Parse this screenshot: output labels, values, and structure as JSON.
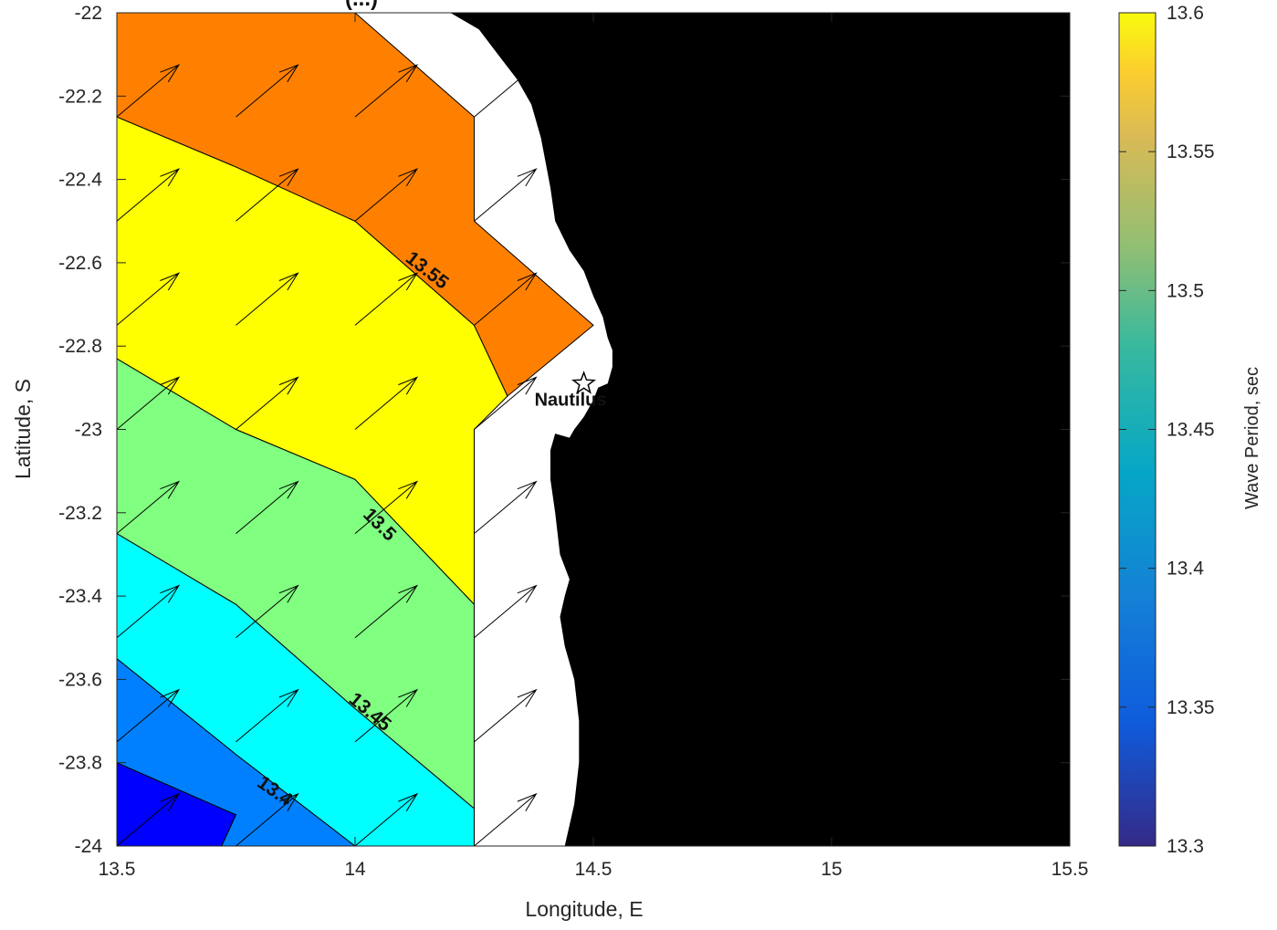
{
  "title": "(...)",
  "colorbar": {
    "label": "Wave Period, sec",
    "min": 13.3,
    "max": 13.6,
    "ticks": [
      "13.3",
      "13.35",
      "13.4",
      "13.45",
      "13.5",
      "13.55",
      "13.6"
    ]
  },
  "place": {
    "name": "Nautilus",
    "lon": 14.48,
    "lat": -22.89,
    "marker": "star-icon"
  },
  "chart_data": {
    "type": "heatmap",
    "subtype": "filled-contour-map",
    "xlabel": "Longitude, E",
    "ylabel": "Latitude, S",
    "xlim": [
      13.5,
      15.5
    ],
    "ylim": [
      -24,
      -22
    ],
    "x_ticks": [
      "13.5",
      "14",
      "14.5",
      "15",
      "15.5"
    ],
    "y_ticks": [
      "-22",
      "-22.2",
      "-22.4",
      "-22.6",
      "-22.8",
      "-23",
      "-23.2",
      "-23.4",
      "-23.6",
      "-23.8",
      "-24"
    ],
    "grid": false,
    "land_color": "#000000",
    "bands": [
      {
        "range": [
          13.3,
          13.35
        ],
        "color": "#0000ff",
        "polygon": [
          [
            13.5,
            -23.8
          ],
          [
            13.75,
            -23.925
          ],
          [
            13.72,
            -24
          ],
          [
            13.5,
            -24
          ]
        ]
      },
      {
        "range": [
          13.35,
          13.4
        ],
        "color": "#0080ff",
        "polygon": [
          [
            13.5,
            -23.55
          ],
          [
            13.75,
            -23.78
          ],
          [
            14.0,
            -24
          ],
          [
            13.72,
            -24
          ],
          [
            13.75,
            -23.925
          ],
          [
            13.5,
            -23.8
          ]
        ]
      },
      {
        "range": [
          13.4,
          13.45
        ],
        "color": "#00ffff",
        "polygon": [
          [
            13.5,
            -23.25
          ],
          [
            13.75,
            -23.42
          ],
          [
            14.0,
            -23.67
          ],
          [
            14.25,
            -23.91
          ],
          [
            14.25,
            -24
          ],
          [
            14.0,
            -24
          ],
          [
            13.75,
            -23.78
          ],
          [
            13.5,
            -23.55
          ]
        ]
      },
      {
        "range": [
          13.45,
          13.5
        ],
        "color": "#80ff80",
        "polygon": [
          [
            13.5,
            -22.83
          ],
          [
            13.75,
            -23.0
          ],
          [
            14.0,
            -23.12
          ],
          [
            14.25,
            -23.42
          ],
          [
            14.25,
            -23.91
          ],
          [
            14.0,
            -23.67
          ],
          [
            13.75,
            -23.42
          ],
          [
            13.5,
            -23.25
          ]
        ]
      },
      {
        "range": [
          13.5,
          13.55
        ],
        "color": "#ffff00",
        "polygon": [
          [
            13.5,
            -22.25
          ],
          [
            13.75,
            -22.37
          ],
          [
            14.0,
            -22.5
          ],
          [
            14.25,
            -22.75
          ],
          [
            14.32,
            -22.92
          ],
          [
            14.25,
            -23.0
          ],
          [
            14.25,
            -23.42
          ],
          [
            14.0,
            -23.12
          ],
          [
            13.75,
            -23.0
          ],
          [
            13.5,
            -22.83
          ]
        ]
      },
      {
        "range": [
          13.55,
          13.6
        ],
        "color": "#ff8000",
        "polygon": [
          [
            13.5,
            -22.0
          ],
          [
            14.0,
            -22.0
          ],
          [
            14.25,
            -22.25
          ],
          [
            14.25,
            -22.5
          ],
          [
            14.5,
            -22.75
          ],
          [
            14.32,
            -22.92
          ],
          [
            14.25,
            -22.75
          ],
          [
            14.0,
            -22.5
          ],
          [
            13.75,
            -22.37
          ],
          [
            13.5,
            -22.25
          ]
        ]
      }
    ],
    "contour_labels": [
      {
        "text": "13.4",
        "lon": 13.83,
        "lat": -23.87,
        "angle": 35
      },
      {
        "text": "13.45",
        "lon": 14.03,
        "lat": -23.68,
        "angle": 40
      },
      {
        "text": "13.5",
        "lon": 14.05,
        "lat": -23.23,
        "angle": 45
      },
      {
        "text": "13.55",
        "lon": 14.15,
        "lat": -22.62,
        "angle": 38
      }
    ],
    "vectors": {
      "lons": [
        13.5,
        13.75,
        14.0,
        14.25
      ],
      "lats": [
        -22.25,
        -22.5,
        -22.75,
        -23.0,
        -23.25,
        -23.5,
        -23.75,
        -24.0
      ],
      "extra": [
        [
          14.25,
          -22.0
        ]
      ],
      "dlon": 0.13,
      "dlat": 0.125
    },
    "coastline": [
      [
        14.2,
        -22.0
      ],
      [
        14.26,
        -22.04
      ],
      [
        14.3,
        -22.1
      ],
      [
        14.34,
        -22.16
      ],
      [
        14.37,
        -22.22
      ],
      [
        14.39,
        -22.3
      ],
      [
        14.4,
        -22.36
      ],
      [
        14.41,
        -22.42
      ],
      [
        14.42,
        -22.5
      ],
      [
        14.45,
        -22.57
      ],
      [
        14.48,
        -22.62
      ],
      [
        14.5,
        -22.68
      ],
      [
        14.52,
        -22.73
      ],
      [
        14.53,
        -22.78
      ],
      [
        14.54,
        -22.81
      ],
      [
        14.54,
        -22.85
      ],
      [
        14.53,
        -22.89
      ],
      [
        14.51,
        -22.9
      ],
      [
        14.5,
        -22.93
      ],
      [
        14.48,
        -22.97
      ],
      [
        14.46,
        -23.0
      ],
      [
        14.45,
        -23.02
      ],
      [
        14.42,
        -23.01
      ],
      [
        14.41,
        -23.05
      ],
      [
        14.41,
        -23.12
      ],
      [
        14.42,
        -23.2
      ],
      [
        14.43,
        -23.3
      ],
      [
        14.45,
        -23.36
      ],
      [
        14.44,
        -23.4
      ],
      [
        14.43,
        -23.45
      ],
      [
        14.44,
        -23.52
      ],
      [
        14.46,
        -23.6
      ],
      [
        14.47,
        -23.7
      ],
      [
        14.47,
        -23.8
      ],
      [
        14.46,
        -23.9
      ],
      [
        14.45,
        -23.95
      ],
      [
        14.44,
        -24.0
      ]
    ]
  }
}
